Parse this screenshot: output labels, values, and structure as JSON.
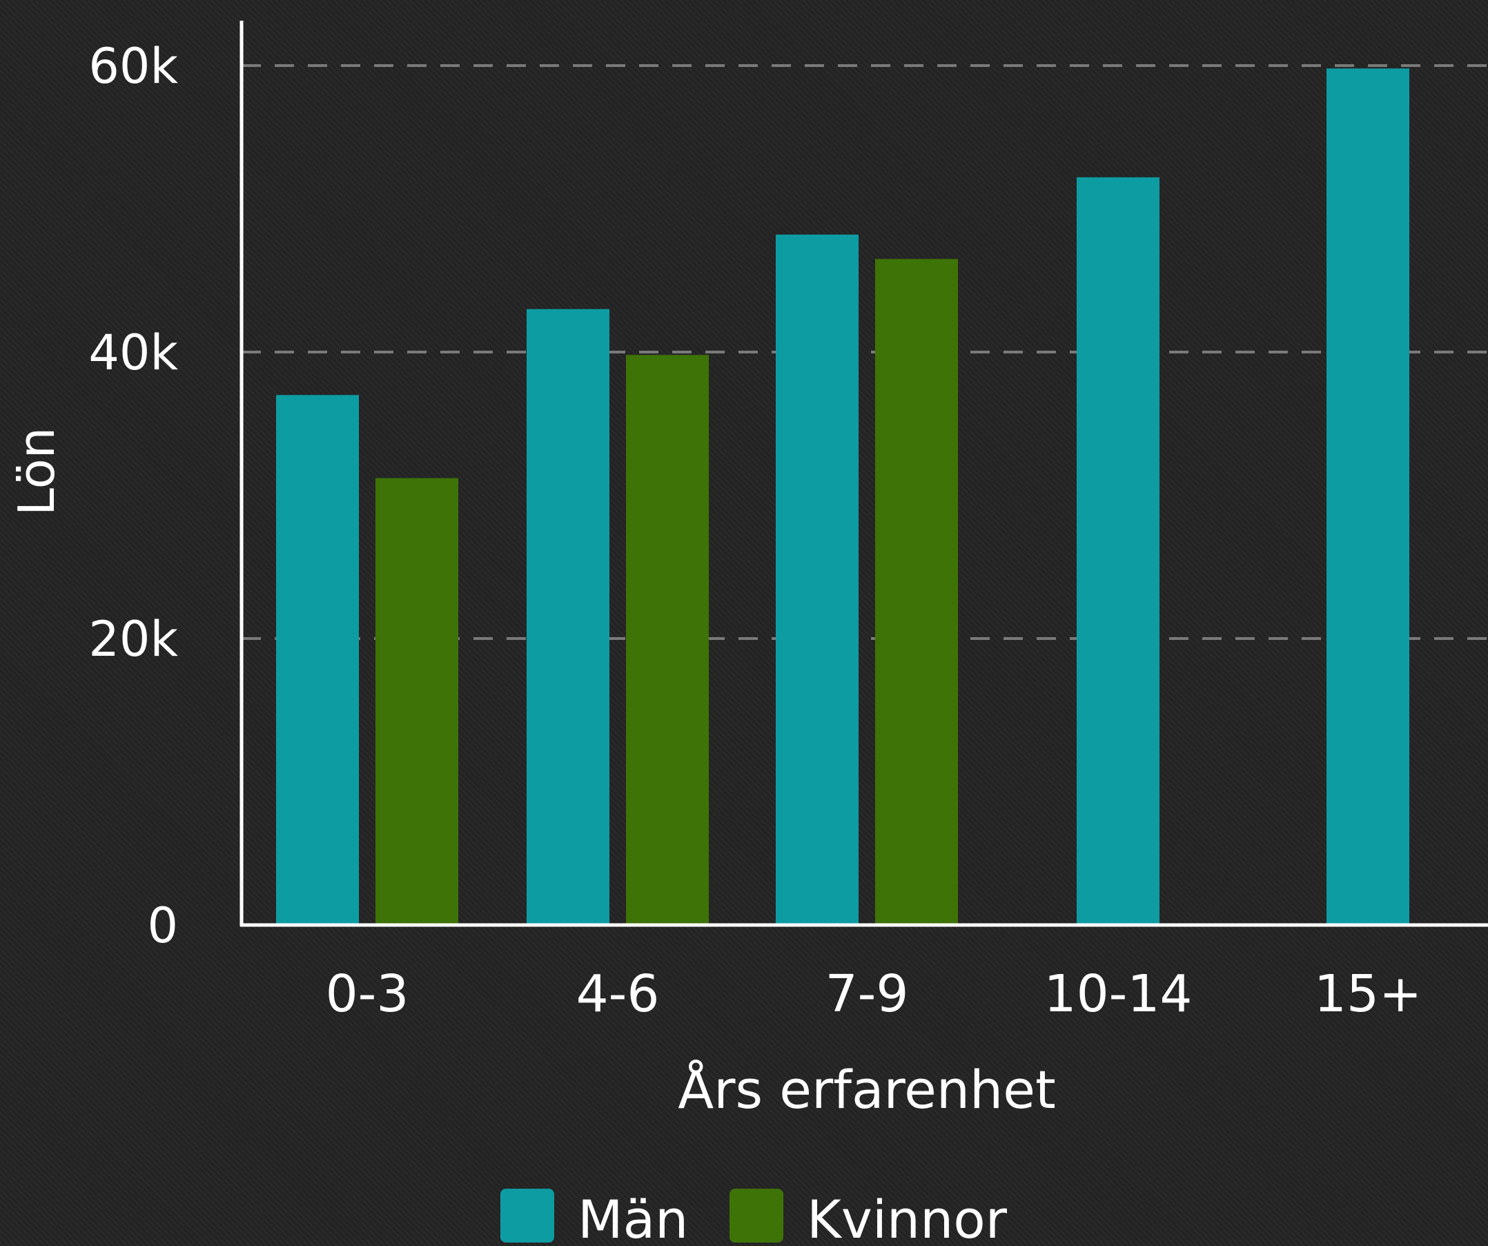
{
  "chart_data": {
    "type": "bar",
    "title": "",
    "xlabel": "Års erfarenhet",
    "ylabel": "Lön",
    "categories": [
      "0-3",
      "4-6",
      "7-9",
      "10-14",
      "15+"
    ],
    "series": [
      {
        "name": "Män",
        "values": [
          37000,
          43000,
          48200,
          52200,
          59800
        ]
      },
      {
        "name": "Kvinnor",
        "values": [
          31200,
          39800,
          46500,
          null,
          null
        ]
      }
    ],
    "ylim": [
      0,
      60000
    ],
    "yticks": [
      {
        "value": 0,
        "label": "0"
      },
      {
        "value": 20000,
        "label": "20k"
      },
      {
        "value": 40000,
        "label": "40k"
      },
      {
        "value": 60000,
        "label": "60k"
      }
    ],
    "grid": true,
    "legend_position": "bottom",
    "colors": {
      "series": [
        "#0e9ca3",
        "#3e7307"
      ],
      "axis": "#ffffff",
      "grid": "#7a7a7a",
      "background": "#232323"
    }
  }
}
